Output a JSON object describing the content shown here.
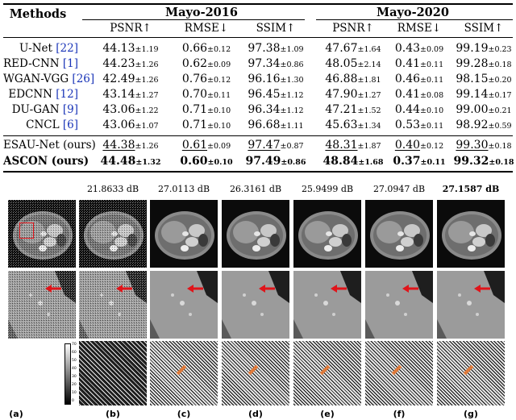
{
  "table": {
    "methods_header": "Methods",
    "groups": [
      "Mayo-2016",
      "Mayo-2020"
    ],
    "metrics": [
      "PSNR↑",
      "RMSE↓",
      "SSIM↑",
      "PSNR↑",
      "RMSE↓",
      "SSIM↑"
    ],
    "rows": [
      {
        "name": "U-Net",
        "cite": "[22]",
        "cells": [
          [
            "44.13",
            "±1.19"
          ],
          [
            "0.66",
            "±0.12"
          ],
          [
            "97.38",
            "±1.09"
          ],
          [
            "47.67",
            "±1.64"
          ],
          [
            "0.43",
            "±0.09"
          ],
          [
            "99.19",
            "±0.23"
          ]
        ]
      },
      {
        "name": "RED-CNN",
        "cite": "[1]",
        "cells": [
          [
            "44.23",
            "±1.26"
          ],
          [
            "0.62",
            "±0.09"
          ],
          [
            "97.34",
            "±0.86"
          ],
          [
            "48.05",
            "±2.14"
          ],
          [
            "0.41",
            "±0.11"
          ],
          [
            "99.28",
            "±0.18"
          ]
        ]
      },
      {
        "name": "WGAN-VGG",
        "cite": "[26]",
        "cells": [
          [
            "42.49",
            "±1.26"
          ],
          [
            "0.76",
            "±0.12"
          ],
          [
            "96.16",
            "±1.30"
          ],
          [
            "46.88",
            "±1.81"
          ],
          [
            "0.46",
            "±0.11"
          ],
          [
            "98.15",
            "±0.20"
          ]
        ]
      },
      {
        "name": "EDCNN",
        "cite": "[12]",
        "cells": [
          [
            "43.14",
            "±1.27"
          ],
          [
            "0.70",
            "±0.11"
          ],
          [
            "96.45",
            "±1.12"
          ],
          [
            "47.90",
            "±1.27"
          ],
          [
            "0.41",
            "±0.08"
          ],
          [
            "99.14",
            "±0.17"
          ]
        ]
      },
      {
        "name": "DU-GAN",
        "cite": "[9]",
        "cells": [
          [
            "43.06",
            "±1.22"
          ],
          [
            "0.71",
            "±0.10"
          ],
          [
            "96.34",
            "±1.12"
          ],
          [
            "47.21",
            "±1.52"
          ],
          [
            "0.44",
            "±0.10"
          ],
          [
            "99.00",
            "±0.21"
          ]
        ]
      },
      {
        "name": "CNCL",
        "cite": "[6]",
        "cells": [
          [
            "43.06",
            "±1.07"
          ],
          [
            "0.71",
            "±0.10"
          ],
          [
            "96.68",
            "±1.11"
          ],
          [
            "45.63",
            "±1.34"
          ],
          [
            "0.53",
            "±0.11"
          ],
          [
            "98.92",
            "±0.59"
          ]
        ]
      },
      {
        "name": "ESAU-Net (ours)",
        "cite": "",
        "style": "underline",
        "cells": [
          [
            "44.38",
            "±1.26"
          ],
          [
            "0.61",
            "±0.09"
          ],
          [
            "97.47",
            "±0.87"
          ],
          [
            "48.31",
            "±1.87"
          ],
          [
            "0.40",
            "±0.12"
          ],
          [
            "99.30",
            "±0.18"
          ]
        ]
      },
      {
        "name": "ASCON (ours)",
        "cite": "",
        "style": "bold",
        "cells": [
          [
            "44.48",
            "±1.32"
          ],
          [
            "0.60",
            "±0.10"
          ],
          [
            "97.49",
            "±0.86"
          ],
          [
            "48.84",
            "±1.68"
          ],
          [
            "0.37",
            "±0.11"
          ],
          [
            "99.32",
            "±0.18"
          ]
        ]
      }
    ]
  },
  "figure": {
    "psnr_labels": [
      "21.8633 dB",
      "27.0113 dB",
      "26.3161 dB",
      "25.9499 dB",
      "27.0947 dB",
      "27.1587 dB"
    ],
    "panel_labels": [
      "(a)",
      "(b)",
      "(c)",
      "(d)",
      "(e)",
      "(f)",
      "(g)"
    ],
    "colorbar_ticks": [
      "70",
      "60",
      "50",
      "40",
      "30",
      "20",
      "10",
      "0"
    ],
    "colors": {
      "arrow": "#e0141a",
      "roi_box": "#e0141a",
      "error_mark": "#e07a3a"
    }
  }
}
